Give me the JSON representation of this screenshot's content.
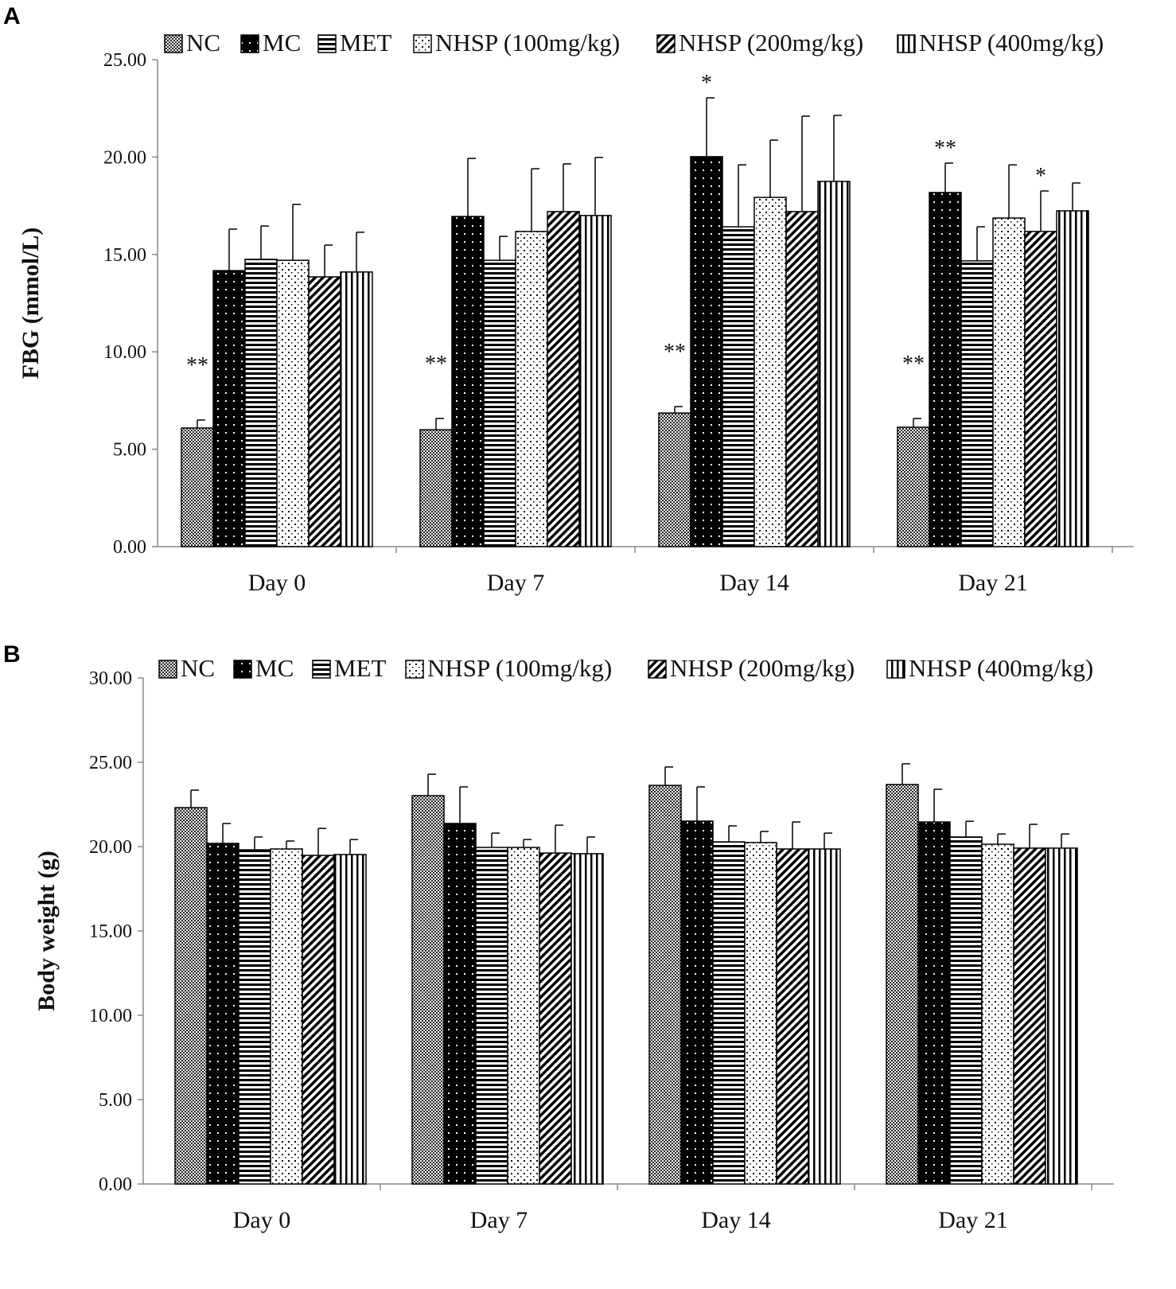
{
  "chart_data": [
    {
      "panel": "A",
      "type": "bar",
      "ylabel": "FBG (mmol/L)",
      "xlabel": "",
      "ylim": [
        0,
        25
      ],
      "yticks": [
        "0.00",
        "5.00",
        "10.00",
        "15.00",
        "20.00",
        "25.00"
      ],
      "categories": [
        "Day 0",
        "Day 7",
        "Day 14",
        "Day 21"
      ],
      "legend_position": "top",
      "series": [
        {
          "name": "NC",
          "values": [
            6.09,
            6.0,
            6.86,
            6.13
          ],
          "errors": [
            0.41,
            0.58,
            0.33,
            0.45
          ]
        },
        {
          "name": "MC",
          "values": [
            14.17,
            16.95,
            20.02,
            18.18
          ],
          "errors": [
            2.13,
            2.98,
            3.02,
            1.51
          ]
        },
        {
          "name": "MET",
          "values": [
            14.75,
            14.7,
            16.42,
            14.67
          ],
          "errors": [
            1.71,
            1.23,
            3.18,
            1.75
          ]
        },
        {
          "name": "NHSP (100mg/kg)",
          "values": [
            14.7,
            16.18,
            17.93,
            16.87
          ],
          "errors": [
            2.87,
            3.22,
            2.94,
            2.73
          ]
        },
        {
          "name": "NHSP (200mg/kg)",
          "values": [
            13.85,
            17.2,
            17.2,
            16.18
          ],
          "errors": [
            1.63,
            2.45,
            4.9,
            2.08
          ]
        },
        {
          "name": "NHSP (400mg/kg)",
          "values": [
            14.1,
            17.0,
            18.75,
            17.24
          ],
          "errors": [
            2.04,
            2.98,
            3.39,
            1.43
          ]
        }
      ],
      "annotations": [
        {
          "category": 0,
          "series": 0,
          "text": "**"
        },
        {
          "category": 1,
          "series": 0,
          "text": "**"
        },
        {
          "category": 2,
          "series": 0,
          "text": "**"
        },
        {
          "category": 2,
          "series": 1,
          "text": "*"
        },
        {
          "category": 3,
          "series": 0,
          "text": "**"
        },
        {
          "category": 3,
          "series": 1,
          "text": "**"
        },
        {
          "category": 3,
          "series": 4,
          "text": "*"
        }
      ]
    },
    {
      "panel": "B",
      "type": "bar",
      "ylabel": "Body weight (g)",
      "xlabel": "",
      "ylim": [
        0,
        30
      ],
      "yticks": [
        "0.00",
        "5.00",
        "10.00",
        "15.00",
        "20.00",
        "25.00",
        "30.00"
      ],
      "categories": [
        "Day 0",
        "Day 7",
        "Day 14",
        "Day 21"
      ],
      "legend_position": "top",
      "series": [
        {
          "name": "NC",
          "values": [
            22.31,
            23.02,
            23.63,
            23.68
          ],
          "errors": [
            1.04,
            1.27,
            1.09,
            1.23
          ]
        },
        {
          "name": "MC",
          "values": [
            20.19,
            21.37,
            21.51,
            21.46
          ],
          "errors": [
            1.18,
            2.17,
            2.03,
            1.94
          ]
        },
        {
          "name": "MET",
          "values": [
            19.81,
            19.95,
            20.28,
            20.57
          ],
          "errors": [
            0.76,
            0.85,
            0.95,
            0.93
          ]
        },
        {
          "name": "NHSP (100mg/kg)",
          "values": [
            19.86,
            19.95,
            20.24,
            20.14
          ],
          "errors": [
            0.47,
            0.47,
            0.66,
            0.61
          ]
        },
        {
          "name": "NHSP (200mg/kg)",
          "values": [
            19.48,
            19.62,
            19.86,
            19.91
          ],
          "errors": [
            1.6,
            1.65,
            1.6,
            1.41
          ]
        },
        {
          "name": "NHSP (400mg/kg)",
          "values": [
            19.53,
            19.58,
            19.86,
            19.91
          ],
          "errors": [
            0.89,
            0.99,
            0.94,
            0.84
          ]
        }
      ],
      "annotations": []
    }
  ]
}
